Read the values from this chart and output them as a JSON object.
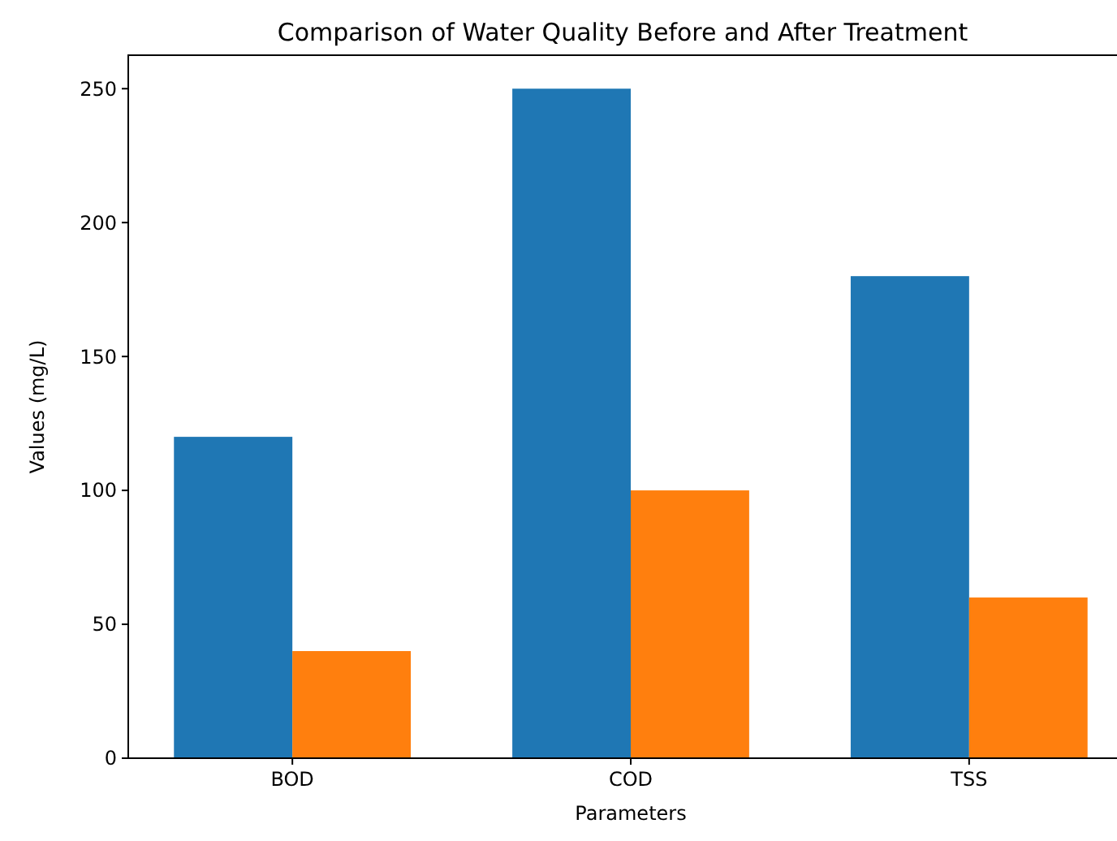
{
  "chart_data": {
    "type": "bar",
    "title": "Comparison of Water Quality Before and After Treatment",
    "xlabel": "Parameters",
    "ylabel": "Values (mg/L)",
    "categories": [
      "BOD",
      "COD",
      "TSS"
    ],
    "series": [
      {
        "color": "#1f77b4",
        "values": [
          120,
          250,
          180
        ]
      },
      {
        "color": "#ff7f0e",
        "values": [
          40,
          100,
          60
        ]
      }
    ],
    "ylim": [
      0,
      262.5
    ],
    "yticks": [
      0,
      50,
      100,
      150,
      200,
      250
    ],
    "grid": false
  }
}
